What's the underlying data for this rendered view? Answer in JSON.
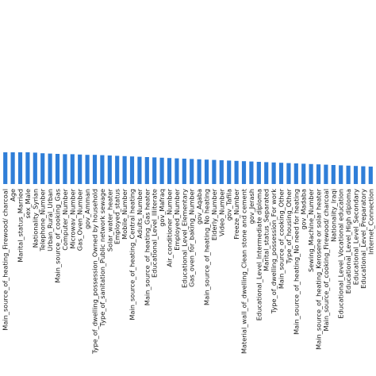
{
  "chart_data": {
    "type": "bar",
    "bar_color": "#2f7ed8",
    "grid": false,
    "legend": "none",
    "ylim": [
      0,
      1
    ],
    "categories": [
      "Main_source_of_heating_Firewood/ charcoal",
      "Age",
      "Marital_status_Married",
      "sex_Male",
      "Nationality_Syrian",
      "Telephone_Number",
      "Urban_Rural_Urban",
      "Main_source_of_cooking_Gas",
      "Computer_Number",
      "Microwav_Number",
      "Gas_Oven_Number",
      "gov_Amman",
      "Type_of_dwelling_possession_Owned by household",
      "Type_of_sanitation_Public network sewage",
      "Solar_water_heater",
      "Employed_status",
      "Mobile_Number",
      "Main_source_of_heating_Central heating",
      "Adults_Number",
      "Main_source_of_heating_Gas heater",
      "Educational_Level_Illiterate",
      "gov_Mafraq",
      "Air_conditioner_Number",
      "Employed_Number",
      "Educational_Level_Elementary",
      "Gas_oven_for_baking_Number",
      "gov_Aqaba",
      "Main_source_of_heating_No heating",
      "Elderly_Number",
      "Video_Number",
      "gov_Tafila",
      "Freeze_Number",
      "Material_wall_of_dwelling_Clean stone and cement",
      "gov_Jerash",
      "Educational_Level_Intermediate diploma",
      "Marital_status_Separated",
      "Type_of_dwelling_possession_For work",
      "Main_source_of_cooking_Other",
      "Type_of_housing_Other",
      "Main_source_of_heating_No need for heating",
      "gov_Madaba",
      "Sewing_Machine_Number",
      "Main_source_of_heating_Kerosene or solar heater",
      "Main_source_of_cooking_Firewood/ charcoal",
      "Nationality_Iraqi",
      "Educational_Level_Vocational education",
      "Educational_Level_High diploma",
      "Educational_Level_Secondary",
      "Educational_Level_Preparatory",
      "Internet_Connection"
    ],
    "values": [
      1.0,
      1.0,
      1.0,
      1.0,
      0.99,
      0.97,
      0.96,
      0.95,
      0.94,
      0.94,
      0.93,
      0.92,
      0.92,
      0.91,
      0.9,
      0.89,
      0.88,
      0.87,
      0.86,
      0.85,
      0.84,
      0.83,
      0.82,
      0.81,
      0.8,
      0.79,
      0.78,
      0.77,
      0.76,
      0.75,
      0.74,
      0.73,
      0.72,
      0.71,
      0.7,
      0.69,
      0.68,
      0.67,
      0.66,
      0.65,
      0.64,
      0.63,
      0.62,
      0.61,
      0.6,
      0.59,
      0.58,
      0.57,
      0.56,
      0.55
    ]
  }
}
